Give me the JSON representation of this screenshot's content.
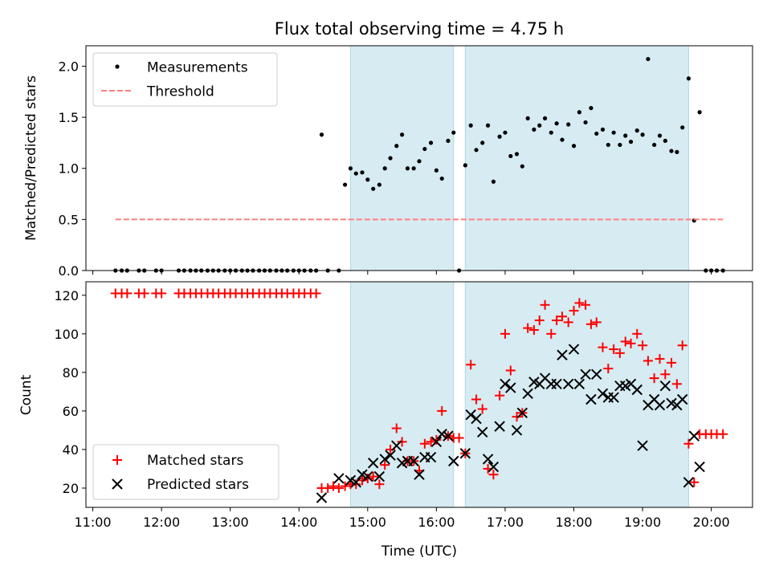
{
  "title": "Flux total observing time = 4.75 h",
  "colors": {
    "shade": "#add8e6",
    "threshold": "#ff7f7f",
    "measurements": "#000000",
    "matched": "#ff0000",
    "predicted": "#000000"
  },
  "chart_data": [
    {
      "type": "scatter",
      "panel": "top",
      "title": "Flux total observing time = 4.75 h",
      "xlabel": "",
      "ylabel": "Matched/Predicted stars",
      "xlim": [
        10.9,
        20.6
      ],
      "ylim": [
        0,
        2.2
      ],
      "yticks": [
        0.0,
        0.5,
        1.0,
        1.5,
        2.0
      ],
      "ytick_labels": [
        "0.0",
        "0.5",
        "1.0",
        "1.5",
        "2.0"
      ],
      "xticks": [
        11,
        12,
        13,
        14,
        15,
        16,
        17,
        18,
        19,
        20
      ],
      "grid": false,
      "legend_position": "top-left",
      "shaded_regions": [
        [
          14.75,
          16.25
        ],
        [
          16.42,
          19.67
        ]
      ],
      "series": [
        {
          "name": "Measurements",
          "marker": "dot",
          "x": [
            11.33,
            11.42,
            11.5,
            11.67,
            11.75,
            11.92,
            12.0,
            12.25,
            12.33,
            12.42,
            12.5,
            12.58,
            12.67,
            12.75,
            12.83,
            12.92,
            13.0,
            13.08,
            13.17,
            13.25,
            13.33,
            13.42,
            13.5,
            13.58,
            13.67,
            13.75,
            13.83,
            13.92,
            14.0,
            14.08,
            14.17,
            14.25,
            14.33,
            14.42,
            14.58,
            14.67,
            14.75,
            14.83,
            14.92,
            15.0,
            15.08,
            15.17,
            15.25,
            15.33,
            15.42,
            15.5,
            15.58,
            15.67,
            15.75,
            15.83,
            15.92,
            16.0,
            16.08,
            16.17,
            16.25,
            16.33,
            16.42,
            16.5,
            16.58,
            16.67,
            16.75,
            16.83,
            16.92,
            17.0,
            17.08,
            17.17,
            17.25,
            17.33,
            17.42,
            17.5,
            17.58,
            17.67,
            17.75,
            17.83,
            17.92,
            18.0,
            18.08,
            18.17,
            18.25,
            18.33,
            18.42,
            18.5,
            18.58,
            18.67,
            18.75,
            18.83,
            18.92,
            19.0,
            19.08,
            19.17,
            19.25,
            19.33,
            19.42,
            19.5,
            19.58,
            19.67,
            19.75,
            19.83,
            19.92,
            20.0,
            20.08,
            20.17
          ],
          "y": [
            0,
            0,
            0,
            0,
            0,
            0,
            0,
            0,
            0,
            0,
            0,
            0,
            0,
            0,
            0,
            0,
            0,
            0,
            0,
            0,
            0,
            0,
            0,
            0,
            0,
            0,
            0,
            0,
            0,
            0,
            0,
            0,
            1.33,
            0,
            0,
            0.84,
            1.0,
            0.95,
            0.96,
            0.89,
            0.8,
            0.84,
            1.0,
            1.1,
            1.22,
            1.33,
            1.0,
            1.0,
            1.07,
            1.19,
            1.25,
            0.98,
            0.9,
            1.27,
            1.35,
            0.0,
            1.03,
            1.42,
            1.18,
            1.25,
            1.42,
            0.87,
            1.31,
            1.35,
            1.12,
            1.14,
            1.02,
            1.49,
            1.38,
            1.42,
            1.49,
            1.35,
            1.44,
            1.28,
            1.43,
            1.22,
            1.55,
            1.45,
            1.59,
            1.34,
            1.38,
            1.23,
            1.35,
            1.23,
            1.32,
            1.26,
            1.37,
            1.33,
            2.07,
            1.23,
            1.32,
            1.27,
            1.17,
            1.16,
            1.4,
            1.88,
            0.49,
            1.55,
            0,
            0,
            0,
            0
          ]
        },
        {
          "name": "Threshold",
          "style": "dashed",
          "x": [
            11.33,
            20.17
          ],
          "y": [
            0.5,
            0.5
          ]
        }
      ]
    },
    {
      "type": "scatter",
      "panel": "bottom",
      "title": "",
      "xlabel": "Time (UTC)",
      "ylabel": "Count",
      "xlim": [
        10.9,
        20.6
      ],
      "ylim": [
        10,
        127
      ],
      "yticks": [
        20,
        40,
        60,
        80,
        100,
        120
      ],
      "ytick_labels": [
        "20",
        "40",
        "60",
        "80",
        "100",
        "120"
      ],
      "xticks": [
        11,
        12,
        13,
        14,
        15,
        16,
        17,
        18,
        19,
        20
      ],
      "xtick_labels": [
        "11:00",
        "12:00",
        "13:00",
        "14:00",
        "15:00",
        "16:00",
        "17:00",
        "18:00",
        "19:00",
        "20:00"
      ],
      "grid": false,
      "legend_position": "bottom-left",
      "shaded_regions": [
        [
          14.75,
          16.25
        ],
        [
          16.42,
          19.67
        ]
      ],
      "series": [
        {
          "name": "Matched stars",
          "marker": "plus",
          "x": [
            11.33,
            11.42,
            11.5,
            11.67,
            11.75,
            11.92,
            12.0,
            12.25,
            12.33,
            12.42,
            12.5,
            12.58,
            12.67,
            12.75,
            12.83,
            12.92,
            13.0,
            13.08,
            13.17,
            13.25,
            13.33,
            13.42,
            13.5,
            13.58,
            13.67,
            13.75,
            13.83,
            13.92,
            14.0,
            14.08,
            14.17,
            14.25,
            14.33,
            14.42,
            14.5,
            14.58,
            14.67,
            14.75,
            14.83,
            14.92,
            15.0,
            15.08,
            15.17,
            15.25,
            15.33,
            15.42,
            15.5,
            15.58,
            15.67,
            15.75,
            15.83,
            15.92,
            16.0,
            16.08,
            16.17,
            16.25,
            16.33,
            16.42,
            16.5,
            16.58,
            16.67,
            16.75,
            16.83,
            16.92,
            17.0,
            17.08,
            17.17,
            17.25,
            17.33,
            17.42,
            17.5,
            17.58,
            17.67,
            17.75,
            17.83,
            17.92,
            18.0,
            18.08,
            18.17,
            18.25,
            18.33,
            18.42,
            18.5,
            18.58,
            18.67,
            18.75,
            18.83,
            18.92,
            19.0,
            19.08,
            19.17,
            19.25,
            19.33,
            19.42,
            19.5,
            19.58,
            19.67,
            19.75,
            19.83,
            19.92,
            20.0,
            20.08,
            20.17
          ],
          "y": [
            121,
            121,
            121,
            121,
            121,
            121,
            121,
            121,
            121,
            121,
            121,
            121,
            121,
            121,
            121,
            121,
            121,
            121,
            121,
            121,
            121,
            121,
            121,
            121,
            121,
            121,
            121,
            121,
            121,
            121,
            121,
            121,
            20,
            20,
            21,
            20,
            21,
            22,
            22,
            24,
            25,
            26,
            22,
            32,
            40,
            51,
            44,
            34,
            34,
            29,
            43,
            44,
            45,
            60,
            47,
            46,
            46,
            38,
            84,
            66,
            61,
            30,
            27,
            68,
            100,
            81,
            57,
            59,
            103,
            102,
            107,
            115,
            100,
            107,
            109,
            106,
            112,
            116,
            115,
            105,
            106,
            93,
            82,
            92,
            90,
            96,
            95,
            100,
            94,
            86,
            77,
            87,
            79,
            85,
            74,
            94,
            43,
            23,
            48,
            48,
            48,
            48,
            48
          ]
        },
        {
          "name": "Predicted stars",
          "marker": "x",
          "x": [
            14.33,
            14.58,
            14.75,
            14.83,
            14.92,
            15.0,
            15.08,
            15.17,
            15.25,
            15.33,
            15.42,
            15.5,
            15.58,
            15.67,
            15.75,
            15.83,
            15.92,
            16.0,
            16.08,
            16.17,
            16.25,
            16.42,
            16.5,
            16.58,
            16.67,
            16.75,
            16.83,
            16.92,
            17.0,
            17.08,
            17.17,
            17.25,
            17.33,
            17.42,
            17.5,
            17.58,
            17.67,
            17.75,
            17.83,
            17.92,
            18.0,
            18.08,
            18.17,
            18.25,
            18.33,
            18.42,
            18.5,
            18.58,
            18.67,
            18.75,
            18.83,
            18.92,
            19.0,
            19.08,
            19.17,
            19.25,
            19.33,
            19.42,
            19.5,
            19.58,
            19.67,
            19.75,
            19.83
          ],
          "y": [
            15,
            25,
            24,
            23,
            27,
            26,
            33,
            26,
            35,
            37,
            42,
            33,
            34,
            34,
            27,
            36,
            36,
            44,
            48,
            47,
            34,
            38,
            58,
            56,
            49,
            35,
            31,
            52,
            74,
            72,
            50,
            59,
            69,
            75,
            74,
            77,
            74,
            74,
            89,
            74,
            92,
            74,
            79,
            66,
            79,
            69,
            67,
            67,
            73,
            73,
            74,
            71,
            42,
            63,
            66,
            63,
            73,
            64,
            63,
            66,
            23,
            47,
            31
          ]
        }
      ]
    }
  ]
}
